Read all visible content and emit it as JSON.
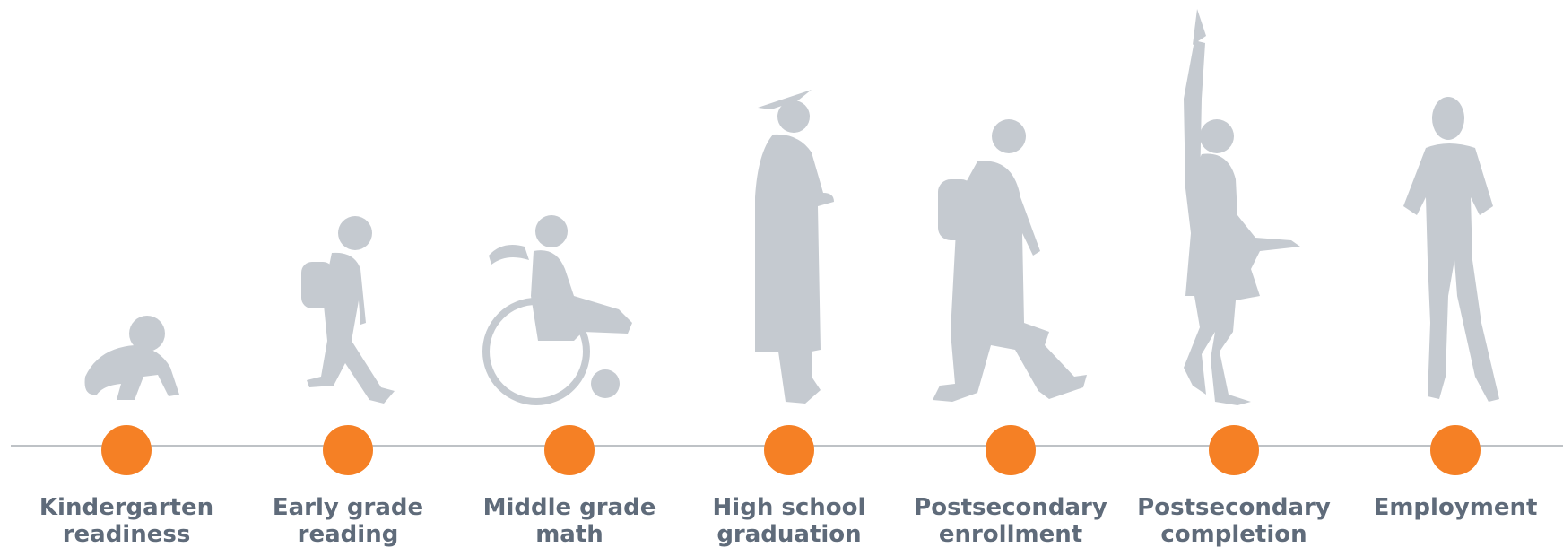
{
  "nodes": [
    {
      "label": [
        "Kindergarten",
        "readiness"
      ]
    },
    {
      "label": [
        "Early grade",
        "reading"
      ]
    },
    {
      "label": [
        "Middle grade",
        "math"
      ]
    },
    {
      "label": [
        "High school",
        "graduation"
      ]
    },
    {
      "label": [
        "Postsecondary",
        "enrollment"
      ]
    },
    {
      "label": [
        "Postsecondary",
        "completion"
      ]
    },
    {
      "label": [
        "Employment"
      ]
    }
  ]
}
